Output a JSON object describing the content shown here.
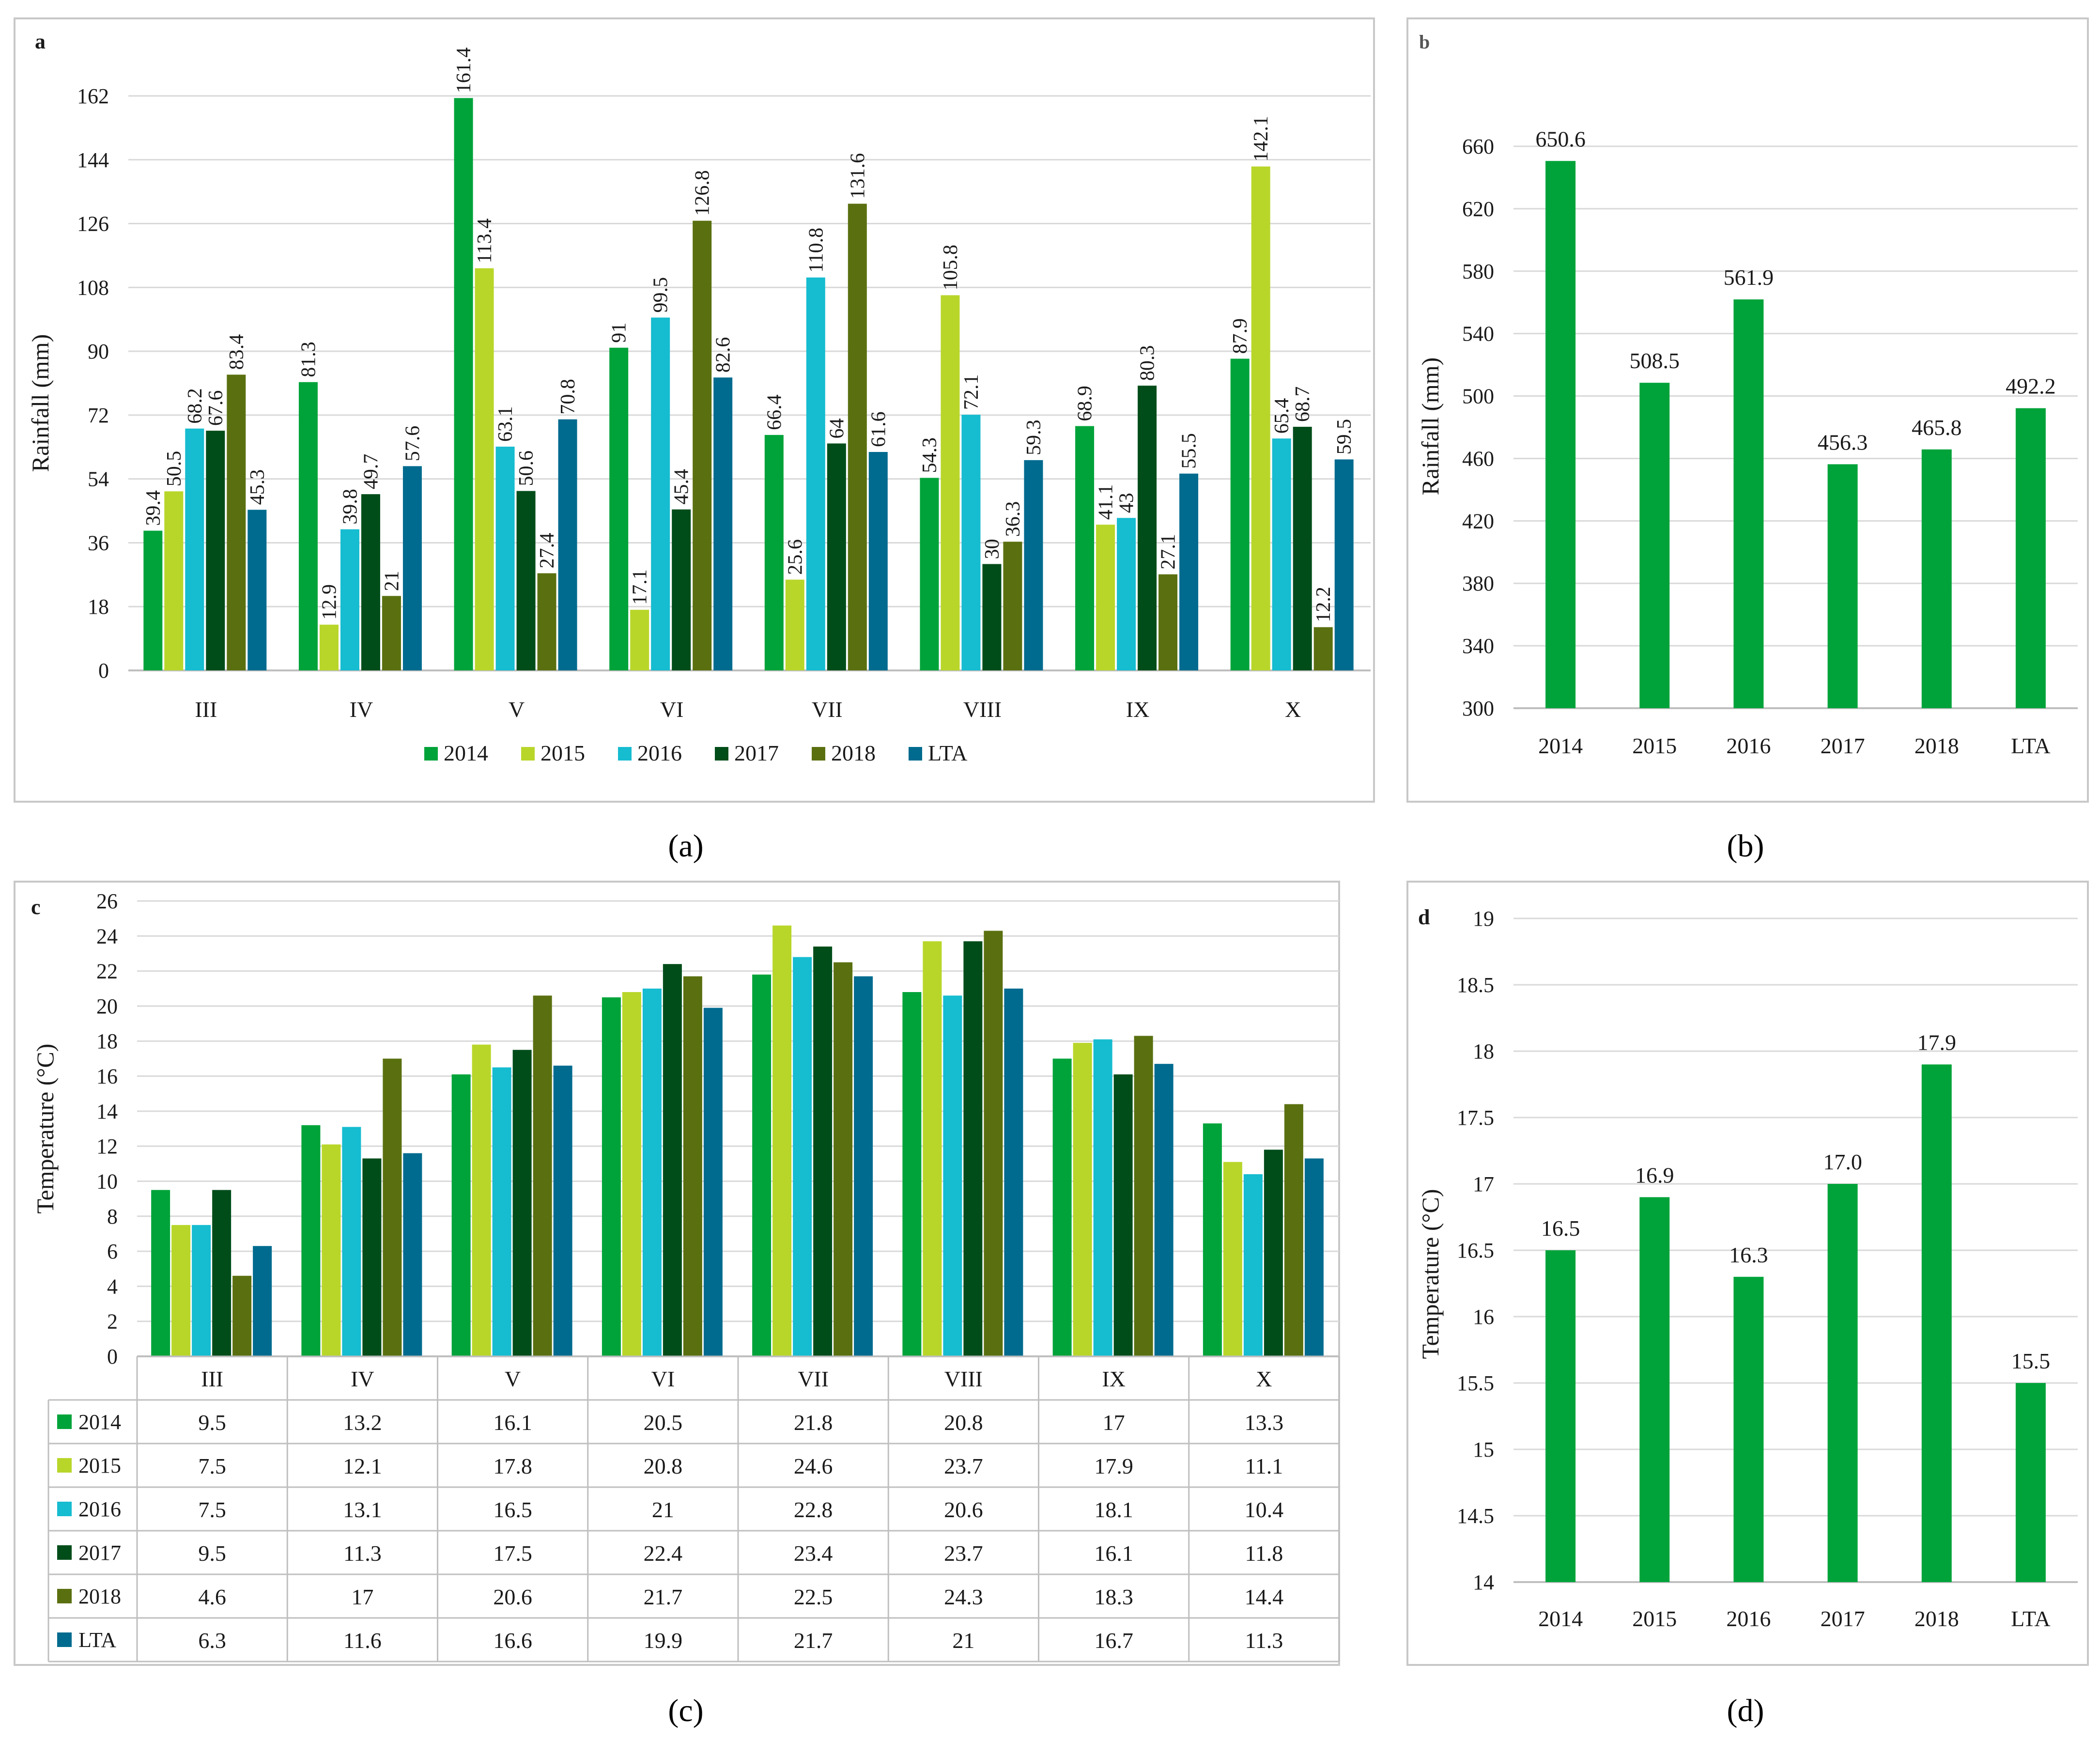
{
  "colors": {
    "2014": "#00a33a",
    "2015": "#b8d62a",
    "2016": "#16bcd0",
    "2017": "#004d1a",
    "2018": "#5a7010",
    "LTA": "#006b8f",
    "grid": "#d9d9d9",
    "axis": "#bfbfbf",
    "border": "#c8c8c8",
    "text": "#1a1a1a"
  },
  "captions": [
    "(a)",
    "(b)",
    "(c)",
    "(d)"
  ],
  "chart_data": [
    {
      "id": "a",
      "panel_label": "a",
      "type": "bar",
      "caption": "(a)",
      "ylabel": "Rainfall (mm)",
      "ylim": [
        0,
        162
      ],
      "yticks": [
        0,
        18,
        36,
        54,
        72,
        90,
        108,
        126,
        144,
        162
      ],
      "categories": [
        "III",
        "IV",
        "V",
        "VI",
        "VII",
        "VIII",
        "IX",
        "X"
      ],
      "legend_position": "bottom",
      "series": [
        {
          "name": "2014",
          "color": "#00a33a",
          "values": [
            39.4,
            81.3,
            161.4,
            91,
            66.4,
            54.3,
            68.9,
            87.9
          ]
        },
        {
          "name": "2015",
          "color": "#b8d62a",
          "values": [
            50.5,
            12.9,
            113.4,
            17.1,
            25.6,
            105.8,
            41.1,
            142.1
          ]
        },
        {
          "name": "2016",
          "color": "#16bcd0",
          "values": [
            68.2,
            39.8,
            63.1,
            99.5,
            110.8,
            72.1,
            43,
            65.4
          ]
        },
        {
          "name": "2017",
          "color": "#004d1a",
          "values": [
            67.6,
            49.7,
            50.6,
            45.4,
            64,
            30,
            80.3,
            68.7
          ]
        },
        {
          "name": "2018",
          "color": "#5a7010",
          "values": [
            83.4,
            21,
            27.4,
            126.8,
            131.6,
            36.3,
            27.1,
            12.2
          ]
        },
        {
          "name": "LTA",
          "color": "#006b8f",
          "values": [
            45.3,
            57.6,
            70.8,
            82.6,
            61.6,
            59.3,
            55.5,
            59.5
          ]
        }
      ]
    },
    {
      "id": "b",
      "panel_label": "b",
      "type": "bar",
      "caption": "(b)",
      "ylabel": "Rainfall (mm)",
      "ylim": [
        300,
        660
      ],
      "yticks": [
        300,
        340,
        380,
        420,
        460,
        500,
        540,
        580,
        620,
        660
      ],
      "categories": [
        "2014",
        "2015",
        "2016",
        "2017",
        "2018",
        "LTA"
      ],
      "values": [
        650.6,
        508.5,
        561.9,
        456.3,
        465.8,
        492.2
      ],
      "labels": [
        "650.6",
        "508.5",
        "561.9",
        "456.3",
        "465.8",
        "492.2"
      ],
      "color": "#00a33a"
    },
    {
      "id": "c",
      "panel_label": "c",
      "type": "bar",
      "caption": "(c)",
      "ylabel": "Temperature (°C)",
      "ylim": [
        0,
        26
      ],
      "yticks": [
        0,
        2,
        4,
        6,
        8,
        10,
        12,
        14,
        16,
        18,
        20,
        22,
        24,
        26
      ],
      "categories": [
        "III",
        "IV",
        "V",
        "VI",
        "VII",
        "VIII",
        "IX",
        "X"
      ],
      "legend_position": "data table",
      "series": [
        {
          "name": "2014",
          "color": "#00a33a",
          "values": [
            9.5,
            13.2,
            16.1,
            20.5,
            21.8,
            20.8,
            17,
            13.3
          ]
        },
        {
          "name": "2015",
          "color": "#b8d62a",
          "values": [
            7.5,
            12.1,
            17.8,
            20.8,
            24.6,
            23.7,
            17.9,
            11.1
          ]
        },
        {
          "name": "2016",
          "color": "#16bcd0",
          "values": [
            7.5,
            13.1,
            16.5,
            21,
            22.8,
            20.6,
            18.1,
            10.4
          ]
        },
        {
          "name": "2017",
          "color": "#004d1a",
          "values": [
            9.5,
            11.3,
            17.5,
            22.4,
            23.4,
            23.7,
            16.1,
            11.8
          ]
        },
        {
          "name": "2018",
          "color": "#5a7010",
          "values": [
            4.6,
            17,
            20.6,
            21.7,
            22.5,
            24.3,
            18.3,
            14.4
          ]
        },
        {
          "name": "LTA",
          "color": "#006b8f",
          "values": [
            6.3,
            11.6,
            16.6,
            19.9,
            21.7,
            21,
            16.7,
            11.3
          ]
        }
      ]
    },
    {
      "id": "d",
      "panel_label": "d",
      "type": "bar",
      "caption": "(d)",
      "ylabel": "Temperature (°C)",
      "ylim": [
        14,
        19
      ],
      "yticks": [
        14,
        14.5,
        15,
        15.5,
        16,
        16.5,
        17,
        17.5,
        18,
        18.5,
        19
      ],
      "categories": [
        "2014",
        "2015",
        "2016",
        "2017",
        "2018",
        "LTA"
      ],
      "values": [
        16.5,
        16.9,
        16.3,
        17.0,
        17.9,
        15.5
      ],
      "labels": [
        "16.5",
        "16.9",
        "16.3",
        "17.0",
        "17.9",
        "15.5"
      ],
      "color": "#00a33a"
    }
  ]
}
